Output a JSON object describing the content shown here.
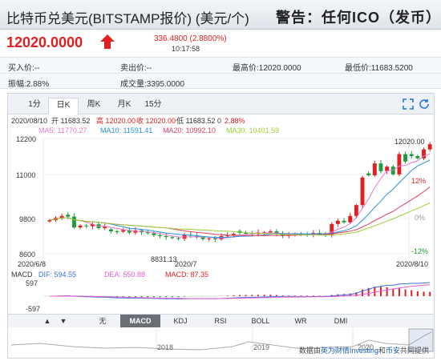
{
  "header": {
    "title": "比特币兑美元(BITSTAMP报价) (美元/个)",
    "warning": "警告：任何ICO（发币）行"
  },
  "quote": {
    "price": "12020.0000",
    "change": "336.4800 (2.8800%)",
    "time": "10:17:58"
  },
  "stats": {
    "buy": "买入价:--",
    "sell": "卖出价:--",
    "high": "最高价:12020.0000",
    "low": "最低价:11683.5200",
    "amplitude": "振幅:2.88%",
    "volume": "成交量:3395.0000"
  },
  "tabs": [
    "1分",
    "日K",
    "周K",
    "月K",
    "15分"
  ],
  "active_tab": "日K",
  "ohlc_line": {
    "date": "2020/08/10",
    "open": "开 11683.52",
    "high": "高 12020.00",
    "close": "收 12020.00",
    "low": "低 11683.52",
    "zero": "0",
    "pct": "2.88%"
  },
  "ma": {
    "ma5": "MA5: 11770.27",
    "ma10": "MA10: 11591.41",
    "ma20": "MA20: 10992.10",
    "ma30": "MA30: 10401.59"
  },
  "colors": {
    "up": "#e02020",
    "down": "#1f9d3a",
    "ma5": "#e879c9",
    "ma10": "#2a8fe0",
    "ma20": "#e04060",
    "ma30": "#9ccf3a",
    "dif": "#3a6fe0",
    "dea": "#e55ccf"
  },
  "chart_data": [
    {
      "type": "candlestick",
      "y_ticks": [
        "12200",
        "11000",
        "9800",
        "8600"
      ],
      "pct_ticks": [
        "12%",
        "0%",
        "-12%"
      ],
      "x_ticks": [
        "2020/6/8",
        "2020/7",
        "2020/8/10"
      ],
      "ylim": [
        8600,
        12200
      ],
      "annotations": {
        "max": "12020.00",
        "min": "8831.13"
      },
      "closes": [
        9650,
        9720,
        9780,
        9760,
        9420,
        9480,
        9460,
        9520,
        9400,
        9440,
        9300,
        9290,
        9340,
        9260,
        9330,
        9270,
        9240,
        9180,
        9150,
        9120,
        9090,
        9070,
        9190,
        9180,
        9110,
        9060,
        9080,
        9050,
        9150,
        9170,
        9220,
        9250,
        9230,
        9210,
        9260,
        9270,
        9300,
        9200,
        9160,
        9180,
        9220,
        9210,
        9200,
        9250,
        9230,
        9180,
        9530,
        9630,
        9580,
        9780,
        10120,
        10980,
        11050,
        11420,
        11180,
        11320,
        11080,
        11710,
        11480,
        11650,
        11580,
        11860,
        12020
      ]
    },
    {
      "type": "macd",
      "labels": {
        "name": "MACD",
        "dif": "DIF: 594.55",
        "dea": "DEA: 550.88",
        "macd": "MACD: 87.35"
      },
      "y_ticks": [
        "597",
        "-597"
      ],
      "ylim": [
        -597,
        597
      ]
    },
    {
      "type": "area",
      "x_ticks": [
        "2018",
        "2019",
        "2020"
      ]
    }
  ],
  "indicators": [
    "无",
    "MACD",
    "KDJ",
    "RSI",
    "BOLL",
    "WR",
    "DMI"
  ],
  "active_indicator": "MACD",
  "credit": {
    "prefix": "数据由",
    "link1": "英为财情Investing",
    "mid": "和",
    "link2": "币安",
    "suffix": "共同提供"
  }
}
